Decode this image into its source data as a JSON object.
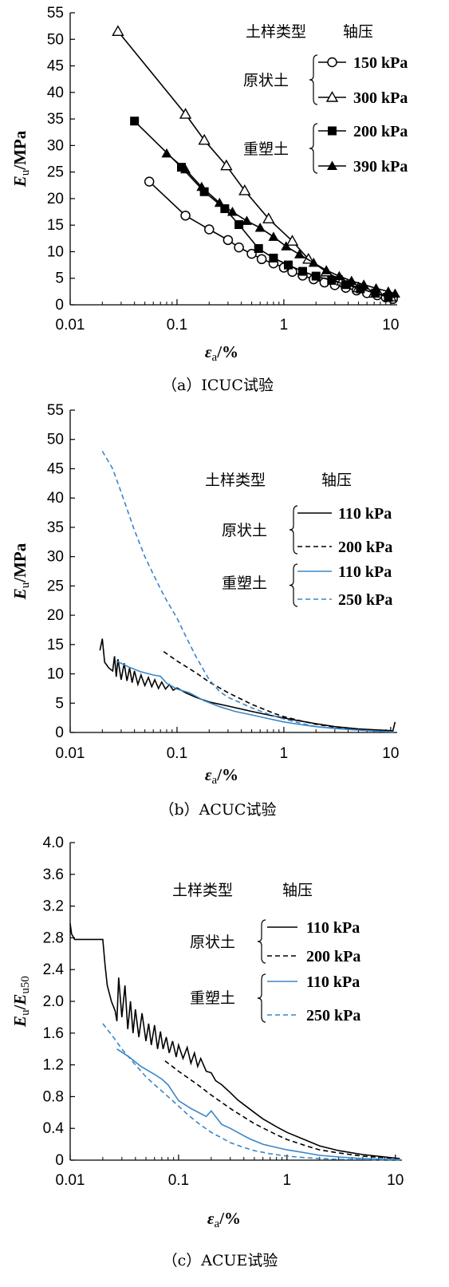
{
  "chart_data": [
    {
      "type": "line",
      "caption": "（a）ICUC试验",
      "xlabel": "εa/%",
      "ylabel": "Eu/MPa",
      "xscale": "log",
      "xlim": [
        0.01,
        10
      ],
      "ylim": [
        0,
        55
      ],
      "xticks": [
        "0.01",
        "0.1",
        "1",
        "10"
      ],
      "yticks": [
        "0",
        "5",
        "10",
        "15",
        "20",
        "25",
        "30",
        "35",
        "40",
        "45",
        "50",
        "55"
      ],
      "legend": {
        "header_type": "土样类型",
        "header_pressure": "轴压",
        "groups": [
          {
            "name": "原状土",
            "entries": [
              "150 kPa",
              "300 kPa"
            ]
          },
          {
            "name": "重塑土",
            "entries": [
              "200 kPa",
              "390 kPa"
            ]
          }
        ]
      },
      "series": [
        {
          "marker": "open-circle",
          "color": "#000000",
          "dash": "",
          "x": [
            0.055,
            0.12,
            0.2,
            0.3,
            0.38,
            0.5,
            0.62,
            0.8,
            1.0,
            1.2,
            1.5,
            1.9,
            2.4,
            3.0,
            3.8,
            4.8,
            6.0,
            7.5,
            9.0,
            10.5
          ],
          "y": [
            23.2,
            16.8,
            14.2,
            12.2,
            10.8,
            9.6,
            8.6,
            7.8,
            7.0,
            6.2,
            5.5,
            4.8,
            4.2,
            3.7,
            3.2,
            2.7,
            2.2,
            1.8,
            1.4,
            1.1
          ]
        },
        {
          "marker": "open-triangle",
          "color": "#000000",
          "dash": "",
          "x": [
            0.028,
            0.12,
            0.18,
            0.29,
            0.43,
            0.72,
            1.2,
            1.7,
            2.5,
            3.5,
            5.0,
            7.0,
            10.0
          ],
          "y": [
            51.5,
            35.9,
            31.0,
            26.2,
            21.5,
            16.2,
            12.0,
            8.6,
            6.2,
            4.5,
            3.2,
            2.2,
            1.5
          ]
        },
        {
          "marker": "filled-square",
          "color": "#000000",
          "dash": "",
          "x": [
            0.04,
            0.11,
            0.18,
            0.28,
            0.38,
            0.58,
            0.8,
            1.1,
            1.5,
            2.0,
            2.8,
            3.8,
            5.2,
            7.2,
            9.5
          ],
          "y": [
            34.6,
            25.9,
            21.3,
            18.1,
            15.1,
            10.6,
            8.8,
            7.5,
            6.3,
            5.4,
            4.6,
            3.8,
            3.0,
            2.2,
            1.4
          ]
        },
        {
          "marker": "filled-triangle",
          "color": "#000000",
          "dash": "",
          "x": [
            0.08,
            0.12,
            0.17,
            0.25,
            0.33,
            0.45,
            0.6,
            0.8,
            1.05,
            1.4,
            1.9,
            2.5,
            3.3,
            4.3,
            5.6,
            7.3,
            9.5,
            11.0
          ],
          "y": [
            28.5,
            25.5,
            22.2,
            19.2,
            17.5,
            15.8,
            14.5,
            12.8,
            11.0,
            9.5,
            7.9,
            6.5,
            5.4,
            4.5,
            3.8,
            3.1,
            2.5,
            2.1
          ]
        }
      ]
    },
    {
      "type": "line",
      "caption": "（b）ACUC试验",
      "xlabel": "εa/%",
      "ylabel": "Eu/MPa",
      "xscale": "log",
      "xlim": [
        0.01,
        10
      ],
      "ylim": [
        0,
        55
      ],
      "xticks": [
        "0.01",
        "0.1",
        "1",
        "10"
      ],
      "yticks": [
        "0",
        "5",
        "10",
        "15",
        "20",
        "25",
        "30",
        "35",
        "40",
        "45",
        "50",
        "55"
      ],
      "legend": {
        "header_type": "土样类型",
        "header_pressure": "轴压",
        "groups": [
          {
            "name": "原状土",
            "entries": [
              "110 kPa",
              "200 kPa"
            ]
          },
          {
            "name": "重塑土",
            "entries": [
              "110 kPa",
              "250 kPa"
            ]
          }
        ]
      },
      "series": [
        {
          "color": "#000000",
          "dash": "",
          "x": [
            0.019,
            0.02,
            0.021,
            0.023,
            0.025,
            0.026,
            0.027,
            0.028,
            0.03,
            0.032,
            0.034,
            0.036,
            0.038,
            0.04,
            0.043,
            0.046,
            0.05,
            0.054,
            0.058,
            0.062,
            0.067,
            0.072,
            0.078,
            0.085,
            0.092,
            0.1,
            0.12,
            0.15,
            0.2,
            0.3,
            0.5,
            0.8,
            1.2,
            2.0,
            3.0,
            5.0,
            8.0,
            10.5,
            11.0
          ],
          "y": [
            14.0,
            16.0,
            12.0,
            11.0,
            10.5,
            13.0,
            9.5,
            12.5,
            9.0,
            11.8,
            8.8,
            11.0,
            8.5,
            10.5,
            8.2,
            9.8,
            8.0,
            9.4,
            7.8,
            9.0,
            7.5,
            8.6,
            7.4,
            8.2,
            7.2,
            7.6,
            6.8,
            6.0,
            5.2,
            4.5,
            3.6,
            2.8,
            2.2,
            1.5,
            1.0,
            0.6,
            0.4,
            0.3,
            1.8
          ]
        },
        {
          "color": "#000000",
          "dash": "6,4",
          "x": [
            0.075,
            0.1,
            0.15,
            0.2,
            0.3,
            0.5,
            0.8,
            1.0,
            1.5,
            2.0,
            3.0,
            5.0,
            8.0,
            10.0
          ],
          "y": [
            13.8,
            12.2,
            10.2,
            8.6,
            6.8,
            4.8,
            3.3,
            2.7,
            1.9,
            1.4,
            0.9,
            0.5,
            0.3,
            0.2
          ]
        },
        {
          "color": "#3a86c8",
          "dash": "",
          "x": [
            0.027,
            0.035,
            0.045,
            0.06,
            0.07,
            0.08,
            0.1,
            0.13,
            0.18,
            0.25,
            0.35,
            0.5,
            0.7,
            1.0,
            1.5,
            2.0,
            3.0,
            5.0,
            8.0,
            10.5
          ],
          "y": [
            12.2,
            11.2,
            10.4,
            9.8,
            9.6,
            8.4,
            7.4,
            6.8,
            5.4,
            4.4,
            3.6,
            3.0,
            2.4,
            1.8,
            1.3,
            1.0,
            0.7,
            0.4,
            0.2,
            0.1
          ]
        },
        {
          "color": "#3a86c8",
          "dash": "6,4",
          "x": [
            0.02,
            0.025,
            0.03,
            0.04,
            0.05,
            0.06,
            0.07,
            0.08,
            0.1,
            0.12,
            0.15,
            0.2,
            0.25,
            0.3,
            0.4,
            0.5,
            0.7,
            1.0,
            1.5,
            2.0,
            3.0,
            5.0,
            8.0,
            10.5
          ],
          "y": [
            48.0,
            45.0,
            41.0,
            34.5,
            30.0,
            27.0,
            24.5,
            22.5,
            19.5,
            16.5,
            13.0,
            9.0,
            7.0,
            6.0,
            5.0,
            4.2,
            3.2,
            2.3,
            1.5,
            1.0,
            0.7,
            0.4,
            0.2,
            0.1
          ]
        }
      ]
    },
    {
      "type": "line",
      "caption": "（c）ACUE试验",
      "xlabel": "εa/%",
      "ylabel": "Eu/Eu50",
      "xscale": "log",
      "xlim": [
        0.01,
        10
      ],
      "ylim": [
        0,
        4.0
      ],
      "xticks": [
        "0.01",
        "0.1",
        "1",
        "10"
      ],
      "yticks": [
        "0",
        "0.4",
        "0.8",
        "1.2",
        "1.6",
        "2.0",
        "2.4",
        "2.8",
        "3.2",
        "3.6",
        "4.0"
      ],
      "legend": {
        "header_type": "土样类型",
        "header_pressure": "轴压",
        "groups": [
          {
            "name": "原状土",
            "entries": [
              "110 kPa",
              "200 kPa"
            ]
          },
          {
            "name": "重塑土",
            "entries": [
              "110 kPa",
              "250 kPa"
            ]
          }
        ]
      },
      "series": [
        {
          "color": "#000000",
          "dash": "",
          "x": [
            0.01,
            0.0103,
            0.011,
            0.012,
            0.013,
            0.015,
            0.017,
            0.019,
            0.02,
            0.021,
            0.022,
            0.024,
            0.026,
            0.027,
            0.028,
            0.03,
            0.032,
            0.034,
            0.036,
            0.038,
            0.04,
            0.043,
            0.046,
            0.05,
            0.053,
            0.056,
            0.06,
            0.064,
            0.068,
            0.072,
            0.077,
            0.082,
            0.088,
            0.095,
            0.1,
            0.11,
            0.12,
            0.13,
            0.14,
            0.15,
            0.16,
            0.18,
            0.2,
            0.22,
            0.25,
            0.3,
            0.35,
            0.4,
            0.5,
            0.6,
            0.8,
            1.0,
            1.5,
            2.0,
            3.0,
            5.0,
            8.0,
            11.0
          ],
          "y": [
            2.98,
            2.85,
            2.78,
            2.78,
            2.78,
            2.78,
            2.78,
            2.78,
            2.78,
            2.45,
            2.2,
            2.0,
            1.88,
            1.75,
            2.3,
            1.8,
            2.2,
            1.65,
            2.0,
            1.6,
            1.9,
            1.55,
            1.85,
            1.5,
            1.72,
            1.45,
            1.7,
            1.4,
            1.62,
            1.4,
            1.55,
            1.35,
            1.5,
            1.3,
            1.45,
            1.28,
            1.42,
            1.22,
            1.35,
            1.18,
            1.28,
            1.12,
            1.1,
            1.0,
            0.95,
            0.85,
            0.76,
            0.7,
            0.6,
            0.52,
            0.42,
            0.35,
            0.25,
            0.18,
            0.12,
            0.07,
            0.04,
            0.02
          ]
        },
        {
          "color": "#000000",
          "dash": "6,4",
          "x": [
            0.075,
            0.1,
            0.15,
            0.2,
            0.3,
            0.5,
            0.8,
            1.0,
            1.5,
            2.0,
            3.0,
            5.0,
            8.0,
            11.0
          ],
          "y": [
            1.25,
            1.12,
            0.95,
            0.82,
            0.65,
            0.46,
            0.32,
            0.26,
            0.18,
            0.13,
            0.09,
            0.05,
            0.03,
            0.02
          ]
        },
        {
          "color": "#3a86c8",
          "dash": "",
          "x": [
            0.027,
            0.035,
            0.045,
            0.06,
            0.07,
            0.08,
            0.1,
            0.13,
            0.18,
            0.2,
            0.25,
            0.3,
            0.35,
            0.45,
            0.6,
            0.8,
            1.0,
            1.5,
            2.0,
            3.0,
            5.0,
            8.0,
            11.0
          ],
          "y": [
            1.4,
            1.3,
            1.18,
            1.08,
            1.02,
            0.95,
            0.75,
            0.65,
            0.55,
            0.62,
            0.45,
            0.4,
            0.35,
            0.27,
            0.2,
            0.16,
            0.13,
            0.09,
            0.06,
            0.04,
            0.02,
            0.01,
            0.01
          ]
        },
        {
          "color": "#3a86c8",
          "dash": "6,4",
          "x": [
            0.02,
            0.025,
            0.03,
            0.04,
            0.05,
            0.06,
            0.07,
            0.08,
            0.1,
            0.12,
            0.15,
            0.2,
            0.25,
            0.3,
            0.4,
            0.5,
            0.7,
            1.0,
            1.5,
            2.0,
            3.0,
            5.0,
            8.0,
            11.0
          ],
          "y": [
            1.72,
            1.55,
            1.4,
            1.2,
            1.05,
            0.95,
            0.87,
            0.8,
            0.68,
            0.58,
            0.47,
            0.35,
            0.28,
            0.22,
            0.16,
            0.12,
            0.08,
            0.05,
            0.03,
            0.02,
            0.01,
            0.01,
            0.0,
            0.0
          ]
        }
      ]
    }
  ]
}
